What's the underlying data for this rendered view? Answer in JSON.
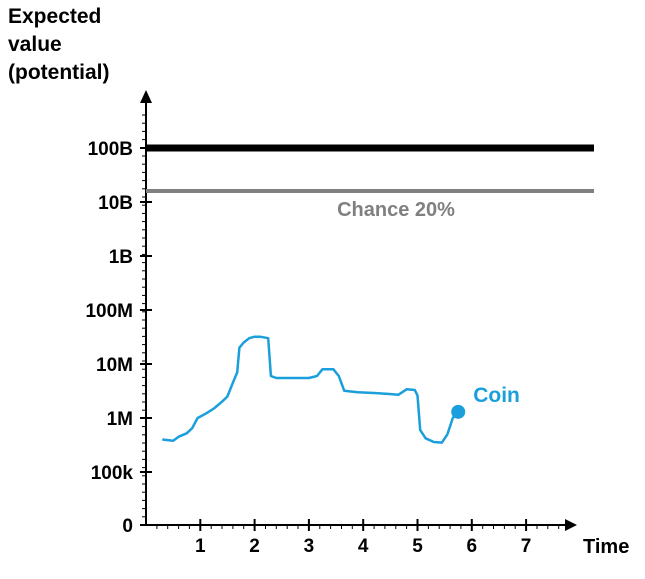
{
  "chart_data": {
    "type": "line",
    "ylabel_lines": [
      "Expected",
      "value",
      "(potential)"
    ],
    "xlabel": "Time",
    "x_ticks": [
      1,
      2,
      3,
      4,
      5,
      6,
      7
    ],
    "x_range": [
      0,
      7.8
    ],
    "y_scale": "log",
    "y_ticks": [
      {
        "label": "0",
        "value": 0
      },
      {
        "label": "100k",
        "value": 100000
      },
      {
        "label": "1M",
        "value": 1000000
      },
      {
        "label": "10M",
        "value": 10000000
      },
      {
        "label": "100M",
        "value": 100000000
      },
      {
        "label": "1B",
        "value": 1000000000
      },
      {
        "label": "10B",
        "value": 10000000000
      },
      {
        "label": "100B",
        "value": 100000000000
      }
    ],
    "reference_lines": [
      {
        "value": 100000000000,
        "color": "#000000",
        "label": ""
      },
      {
        "value": 16000000000,
        "color": "#808080",
        "label": "Chance 20%"
      }
    ],
    "series": [
      {
        "name": "Coin",
        "color": "#1a9fdc",
        "end_marker": true,
        "points": [
          [
            0.3,
            400000
          ],
          [
            0.5,
            380000
          ],
          [
            0.6,
            450000
          ],
          [
            0.75,
            520000
          ],
          [
            0.85,
            650000
          ],
          [
            0.95,
            1000000
          ],
          [
            1.1,
            1200000
          ],
          [
            1.25,
            1500000
          ],
          [
            1.4,
            2000000
          ],
          [
            1.5,
            2500000
          ],
          [
            1.6,
            4500000
          ],
          [
            1.68,
            7000000
          ],
          [
            1.72,
            20000000
          ],
          [
            1.8,
            25000000
          ],
          [
            1.9,
            30000000
          ],
          [
            2.0,
            32000000
          ],
          [
            2.1,
            32000000
          ],
          [
            2.25,
            30000000
          ],
          [
            2.3,
            6000000
          ],
          [
            2.4,
            5500000
          ],
          [
            2.7,
            5500000
          ],
          [
            3.0,
            5500000
          ],
          [
            3.15,
            6000000
          ],
          [
            3.25,
            8000000
          ],
          [
            3.45,
            8000000
          ],
          [
            3.55,
            6000000
          ],
          [
            3.65,
            3200000
          ],
          [
            3.9,
            3000000
          ],
          [
            4.2,
            2900000
          ],
          [
            4.45,
            2800000
          ],
          [
            4.65,
            2700000
          ],
          [
            4.8,
            3400000
          ],
          [
            4.95,
            3300000
          ],
          [
            5.0,
            2600000
          ],
          [
            5.05,
            600000
          ],
          [
            5.15,
            420000
          ],
          [
            5.3,
            360000
          ],
          [
            5.45,
            350000
          ],
          [
            5.55,
            500000
          ],
          [
            5.65,
            1000000
          ],
          [
            5.75,
            1300000
          ]
        ]
      }
    ]
  }
}
